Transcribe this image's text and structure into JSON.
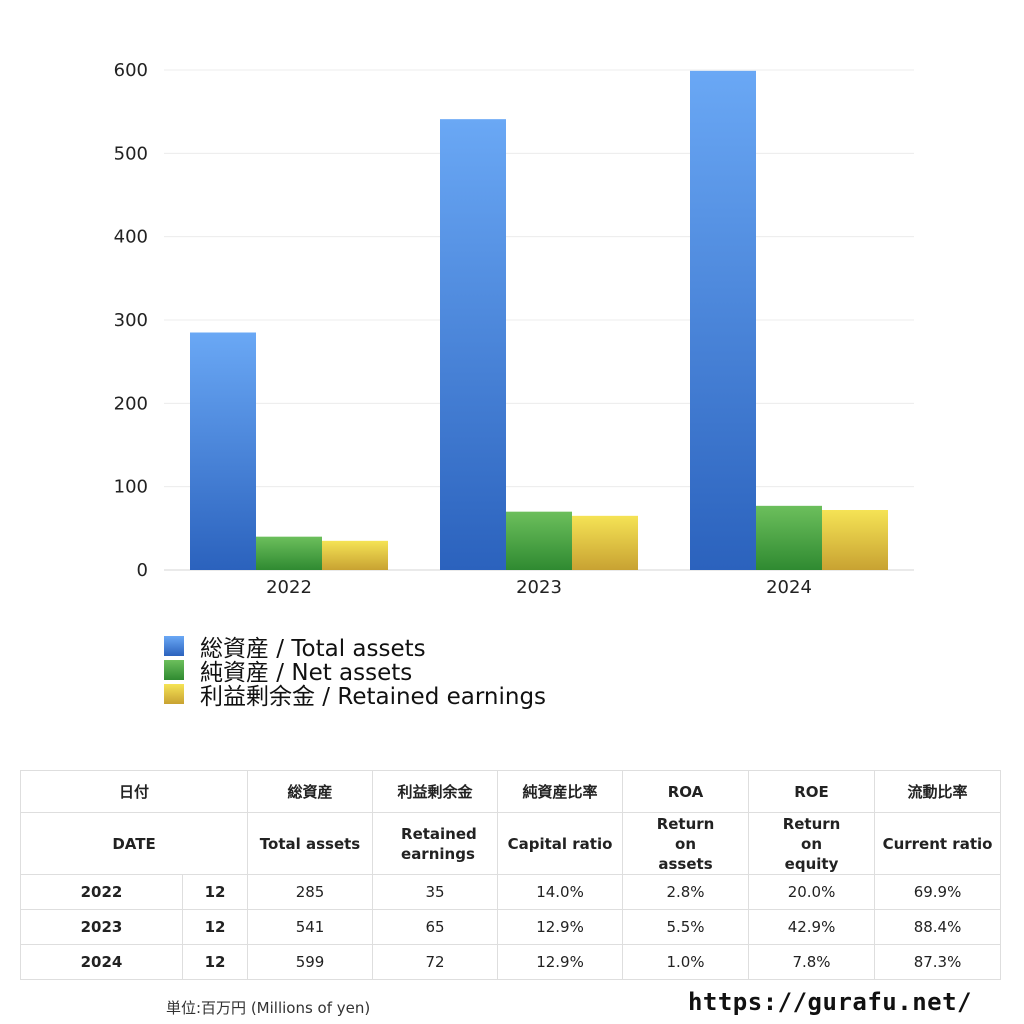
{
  "chart_data": {
    "type": "bar",
    "categories": [
      "2022",
      "2023",
      "2024"
    ],
    "series": [
      {
        "name": "総資産 / Total assets",
        "values": [
          285,
          541,
          599
        ],
        "color": "#3a7be0"
      },
      {
        "name": "純資産 / Net assets",
        "values": [
          40,
          70,
          77
        ],
        "color": "#3f9a3c"
      },
      {
        "name": "利益剰余金 / Retained earnings",
        "values": [
          35,
          65,
          72
        ],
        "color": "#e8c83a"
      }
    ],
    "ylim": [
      0,
      600
    ],
    "yticks": [
      0,
      100,
      200,
      300,
      400,
      500,
      600
    ],
    "grid": true,
    "legend_position": "bottom-left"
  },
  "table": {
    "headers_jp": [
      "日付",
      "総資産",
      "利益剰余金",
      "純資産比率",
      "ROA",
      "ROE",
      "流動比率"
    ],
    "headers_en": [
      "DATE",
      "Total assets",
      "Retained earnings",
      "Capital ratio",
      "Return on assets",
      "Return on equity",
      "Current ratio"
    ],
    "rows": [
      {
        "year": "2022",
        "month": "12",
        "total_assets": "285",
        "retained": "35",
        "capital_ratio": "14.0%",
        "roa": "2.8%",
        "roe": "20.0%",
        "current_ratio": "69.9%"
      },
      {
        "year": "2023",
        "month": "12",
        "total_assets": "541",
        "retained": "65",
        "capital_ratio": "12.9%",
        "roa": "5.5%",
        "roe": "42.9%",
        "current_ratio": "88.4%"
      },
      {
        "year": "2024",
        "month": "12",
        "total_assets": "599",
        "retained": "72",
        "capital_ratio": "12.9%",
        "roa": "1.0%",
        "roe": "7.8%",
        "current_ratio": "87.3%"
      }
    ]
  },
  "unit_note": "単位:百万円 (Millions of yen)",
  "site_url": "https://gurafu.net/"
}
